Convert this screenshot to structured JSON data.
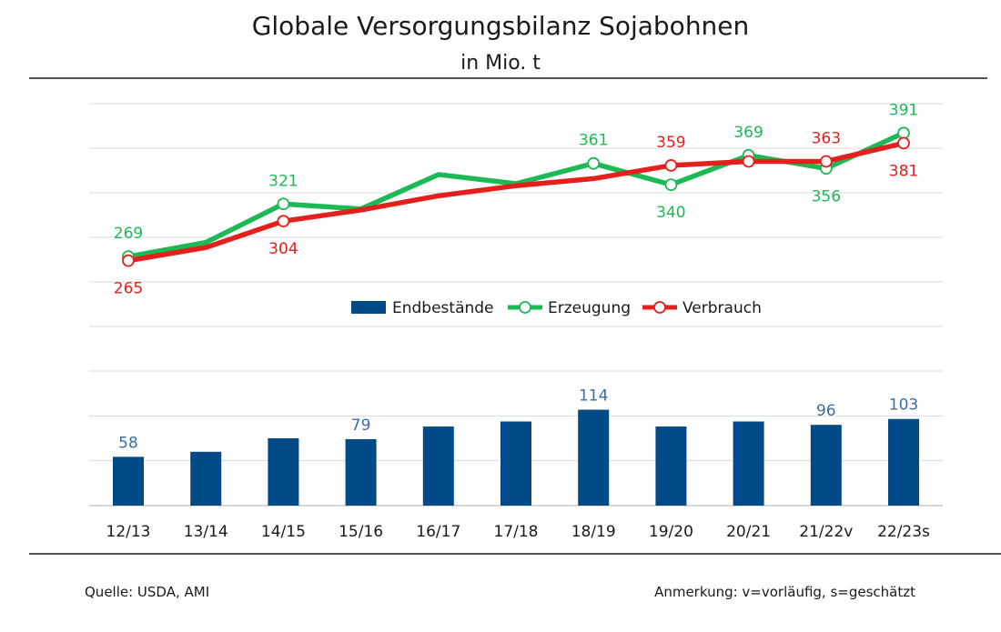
{
  "header": {
    "title": "Globale Versorgungsbilanz Sojabohnen",
    "subtitle": "in Mio. t"
  },
  "footer": {
    "source": "Quelle: USDA, AMI",
    "note": "Anmerkung: v=vorläufig, s=geschätzt"
  },
  "colors": {
    "bars": "#004A87",
    "bar_labels": "#3A6EA5",
    "erzeugung": "#1DB954",
    "verbrauch": "#E3201B",
    "grid": "#d9d9d9",
    "rule": "#1a1a1a"
  },
  "chart_data": {
    "type": "bar",
    "categories": [
      "12/13",
      "13/14",
      "14/15",
      "15/16",
      "16/17",
      "17/18",
      "18/19",
      "19/20",
      "20/21",
      "21/22v",
      "22/23s"
    ],
    "legend": [
      "Endbestände",
      "Erzeugung",
      "Verbrauch"
    ],
    "legend_position": "center",
    "grid": true,
    "series": [
      {
        "name": "Erzeugung",
        "kind": "line",
        "values": [
          269,
          283,
          321,
          316,
          350,
          341,
          361,
          340,
          369,
          356,
          391
        ],
        "labels": [
          "269",
          null,
          "321",
          null,
          null,
          null,
          "361",
          "340",
          "369",
          "356",
          "391"
        ],
        "markers": [
          true,
          false,
          true,
          false,
          false,
          false,
          true,
          true,
          true,
          true,
          true
        ]
      },
      {
        "name": "Verbrauch",
        "kind": "line",
        "values": [
          265,
          278,
          304,
          315,
          329,
          339,
          346,
          359,
          363,
          363,
          381
        ],
        "labels": [
          "265",
          null,
          "304",
          null,
          null,
          null,
          null,
          "359",
          null,
          "363",
          "381"
        ],
        "markers": [
          true,
          false,
          true,
          false,
          false,
          false,
          false,
          true,
          true,
          true,
          true
        ]
      },
      {
        "name": "Endbestände",
        "kind": "bar",
        "values": [
          58,
          64,
          80,
          79,
          94,
          100,
          114,
          94,
          100,
          96,
          103
        ],
        "labels": [
          "58",
          null,
          null,
          "79",
          null,
          null,
          "114",
          null,
          null,
          "96",
          "103"
        ]
      }
    ],
    "line_ylim": [
      200,
      420
    ],
    "bar_ylim": [
      0,
      160
    ]
  }
}
